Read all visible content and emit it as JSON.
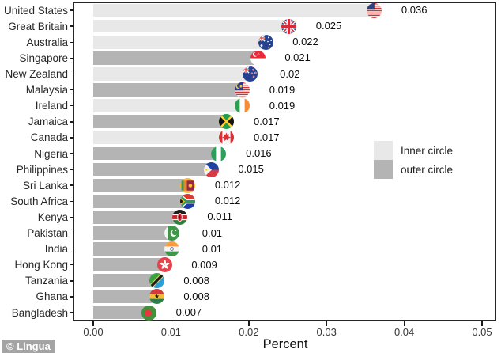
{
  "chart_data": {
    "type": "bar",
    "orientation": "horizontal",
    "title": "",
    "xlabel": "Percent",
    "ylabel": "",
    "xlim": [
      0,
      0.05
    ],
    "grid": false,
    "legend_position": "right-middle",
    "xtick_values": [
      0,
      0.01,
      0.02,
      0.03,
      0.04,
      0.05
    ],
    "xtick_labels": [
      "0.00",
      "0.01",
      "0.02",
      "0.03",
      "0.04",
      "0.05"
    ],
    "legend": [
      {
        "label": "Inner circle",
        "key": "inner",
        "color": "#e8e8e8"
      },
      {
        "label": "outer circle",
        "key": "outer",
        "color": "#b4b4b4"
      }
    ],
    "rows": [
      {
        "country": "United States",
        "value": 0.036,
        "label": "0.036",
        "circle": "inner",
        "flag": "us"
      },
      {
        "country": "Great Britain",
        "value": 0.025,
        "label": "0.025",
        "circle": "inner",
        "flag": "gb"
      },
      {
        "country": "Australia",
        "value": 0.022,
        "label": "0.022",
        "circle": "inner",
        "flag": "au"
      },
      {
        "country": "Singapore",
        "value": 0.021,
        "label": "0.021",
        "circle": "outer",
        "flag": "sg"
      },
      {
        "country": "New Zealand",
        "value": 0.02,
        "label": "0.02",
        "circle": "inner",
        "flag": "nz"
      },
      {
        "country": "Malaysia",
        "value": 0.019,
        "label": "0.019",
        "circle": "outer",
        "flag": "my"
      },
      {
        "country": "Ireland",
        "value": 0.019,
        "label": "0.019",
        "circle": "inner",
        "flag": "ie"
      },
      {
        "country": "Jamaica",
        "value": 0.017,
        "label": "0.017",
        "circle": "outer",
        "flag": "jm"
      },
      {
        "country": "Canada",
        "value": 0.017,
        "label": "0.017",
        "circle": "inner",
        "flag": "ca"
      },
      {
        "country": "Nigeria",
        "value": 0.016,
        "label": "0.016",
        "circle": "outer",
        "flag": "ng"
      },
      {
        "country": "Philippines",
        "value": 0.015,
        "label": "0.015",
        "circle": "outer",
        "flag": "ph"
      },
      {
        "country": "Sri Lanka",
        "value": 0.012,
        "label": "0.012",
        "circle": "outer",
        "flag": "lk"
      },
      {
        "country": "South Africa",
        "value": 0.012,
        "label": "0.012",
        "circle": "outer",
        "flag": "za"
      },
      {
        "country": "Kenya",
        "value": 0.011,
        "label": "0.011",
        "circle": "outer",
        "flag": "ke"
      },
      {
        "country": "Pakistan",
        "value": 0.01,
        "label": "0.01",
        "circle": "outer",
        "flag": "pk"
      },
      {
        "country": "India",
        "value": 0.01,
        "label": "0.01",
        "circle": "outer",
        "flag": "in"
      },
      {
        "country": "Hong Kong",
        "value": 0.009,
        "label": "0.009",
        "circle": "outer",
        "flag": "hk"
      },
      {
        "country": "Tanzania",
        "value": 0.008,
        "label": "0.008",
        "circle": "outer",
        "flag": "tz"
      },
      {
        "country": "Ghana",
        "value": 0.008,
        "label": "0.008",
        "circle": "outer",
        "flag": "gh"
      },
      {
        "country": "Bangladesh",
        "value": 0.007,
        "label": "0.007",
        "circle": "outer",
        "flag": "bd"
      }
    ]
  },
  "watermark": {
    "text": "© Lingua"
  }
}
